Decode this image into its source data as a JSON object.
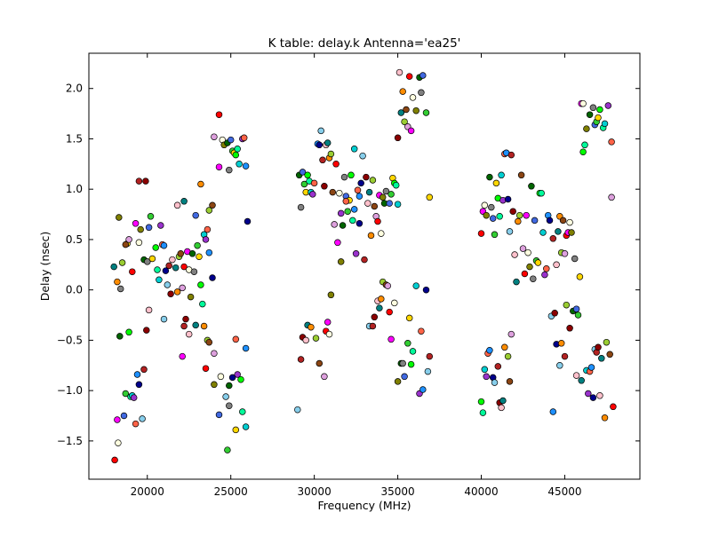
{
  "chart_data": {
    "type": "scatter",
    "title": "K table: delay.k       Antenna='ea25'",
    "xlabel": "Frequency (MHz)",
    "ylabel": "Delay (nsec)",
    "xlim": [
      16500,
      49500
    ],
    "ylim": [
      -1.88,
      2.35
    ],
    "xticks": [
      20000,
      25000,
      30000,
      35000,
      40000,
      45000
    ],
    "yticks": [
      -1.5,
      -1.0,
      -0.5,
      0.0,
      0.5,
      1.0,
      1.5,
      2.0
    ],
    "xtick_labels": [
      "20000",
      "25000",
      "30000",
      "35000",
      "40000",
      "45000"
    ],
    "ytick_labels": [
      "−1.5",
      "−1.0",
      "−0.5",
      "0.0",
      "0.5",
      "1.0",
      "1.5",
      "2.0"
    ],
    "grid": false,
    "legend": "none",
    "marker_palette": [
      "#ff8c00",
      "#1e90ff",
      "#32cd32",
      "#ff0000",
      "#8b0000",
      "#00ced1",
      "#006400",
      "#9acd32",
      "#00008b",
      "#ffd700",
      "#ff00ff",
      "#ffc0cb",
      "#9932cc",
      "#808080",
      "#8b4513",
      "#87ceeb",
      "#00ff00",
      "#ffffe0",
      "#008080",
      "#ff6347",
      "#4169e1",
      "#dda0dd",
      "#b22222",
      "#00fa9a",
      "#808000"
    ],
    "points": [
      [
        18050,
        -1.69
      ],
      [
        18200,
        -1.29
      ],
      [
        18250,
        -1.52
      ],
      [
        18300,
        0.72
      ],
      [
        18350,
        -0.46
      ],
      [
        18400,
        0.01
      ],
      [
        18600,
        -1.25
      ],
      [
        18700,
        -1.03
      ],
      [
        18800,
        0.46
      ],
      [
        18900,
        -0.42
      ],
      [
        19000,
        -1.06
      ],
      [
        19100,
        -1.05
      ],
      [
        19200,
        -1.07
      ],
      [
        19300,
        -1.33
      ],
      [
        19400,
        -0.84
      ],
      [
        19500,
        -0.94
      ],
      [
        19700,
        -1.28
      ],
      [
        19800,
        -0.79
      ],
      [
        19950,
        -0.4
      ],
      [
        20100,
        -0.2
      ],
      [
        18000,
        0.23
      ],
      [
        18200,
        0.08
      ],
      [
        18500,
        0.27
      ],
      [
        18700,
        0.45
      ],
      [
        18900,
        0.5
      ],
      [
        19100,
        0.18
      ],
      [
        19300,
        0.66
      ],
      [
        19500,
        0.47
      ],
      [
        19600,
        0.6
      ],
      [
        19800,
        0.3
      ],
      [
        20000,
        0.28
      ],
      [
        20100,
        0.62
      ],
      [
        20200,
        0.73
      ],
      [
        20300,
        0.31
      ],
      [
        20500,
        0.42
      ],
      [
        20600,
        0.2
      ],
      [
        20700,
        0.1
      ],
      [
        20800,
        0.64
      ],
      [
        20900,
        0.45
      ],
      [
        21000,
        0.44
      ],
      [
        21100,
        0.19
      ],
      [
        21200,
        0.05
      ],
      [
        21300,
        0.24
      ],
      [
        21400,
        -0.04
      ],
      [
        21500,
        0.3
      ],
      [
        21700,
        0.22
      ],
      [
        21800,
        -0.02
      ],
      [
        21900,
        0.33
      ],
      [
        22000,
        0.36
      ],
      [
        22100,
        0.02
      ],
      [
        22200,
        0.23
      ],
      [
        22400,
        0.38
      ],
      [
        22500,
        0.2
      ],
      [
        22600,
        -0.07
      ],
      [
        22700,
        0.36
      ],
      [
        22800,
        0.18
      ],
      [
        22900,
        0.74
      ],
      [
        23000,
        0.44
      ],
      [
        23100,
        0.33
      ],
      [
        23200,
        0.05
      ],
      [
        23300,
        -0.14
      ],
      [
        23400,
        0.55
      ],
      [
        23500,
        0.5
      ],
      [
        23600,
        0.6
      ],
      [
        23700,
        0.37
      ],
      [
        23900,
        0.12
      ],
      [
        21000,
        -0.29
      ],
      [
        22200,
        -0.36
      ],
      [
        22300,
        -0.29
      ],
      [
        22500,
        -0.44
      ],
      [
        22900,
        -0.35
      ],
      [
        23400,
        -0.36
      ],
      [
        23600,
        -0.5
      ],
      [
        23700,
        -0.52
      ],
      [
        24000,
        -0.63
      ],
      [
        23500,
        -0.78
      ],
      [
        22100,
        -0.66
      ],
      [
        24400,
        -0.86
      ],
      [
        24000,
        -0.94
      ],
      [
        24900,
        -0.95
      ],
      [
        24900,
        -1.15
      ],
      [
        24300,
        -1.24
      ],
      [
        24800,
        -1.59
      ],
      [
        25300,
        -1.39
      ],
      [
        25600,
        -0.89
      ],
      [
        25700,
        -1.21
      ],
      [
        25900,
        -1.36
      ],
      [
        25400,
        -0.84
      ],
      [
        25300,
        -0.49
      ],
      [
        25900,
        -0.58
      ],
      [
        25100,
        -0.87
      ],
      [
        24700,
        -1.06
      ],
      [
        19500,
        1.08
      ],
      [
        19900,
        1.08
      ],
      [
        21800,
        0.84
      ],
      [
        22200,
        0.88
      ],
      [
        23200,
        1.05
      ],
      [
        23700,
        0.79
      ],
      [
        23900,
        0.84
      ],
      [
        24000,
        1.52
      ],
      [
        24300,
        1.74
      ],
      [
        24300,
        1.22
      ],
      [
        24500,
        1.49
      ],
      [
        24600,
        1.44
      ],
      [
        24800,
        1.46
      ],
      [
        24900,
        1.19
      ],
      [
        25000,
        1.49
      ],
      [
        25100,
        1.38
      ],
      [
        25200,
        1.36
      ],
      [
        25300,
        1.34
      ],
      [
        25400,
        1.4
      ],
      [
        25500,
        1.25
      ],
      [
        25700,
        1.5
      ],
      [
        25800,
        1.51
      ],
      [
        25900,
        1.23
      ],
      [
        26000,
        0.68
      ],
      [
        29000,
        -1.19
      ],
      [
        29200,
        -0.69
      ],
      [
        29300,
        -0.47
      ],
      [
        29500,
        -0.5
      ],
      [
        29600,
        -0.35
      ],
      [
        29800,
        -0.37
      ],
      [
        30100,
        -0.48
      ],
      [
        30300,
        -0.73
      ],
      [
        30600,
        -0.86
      ],
      [
        30700,
        -0.41
      ],
      [
        30800,
        -0.32
      ],
      [
        30900,
        -0.44
      ],
      [
        31000,
        -0.05
      ],
      [
        29100,
        1.14
      ],
      [
        29200,
        0.82
      ],
      [
        29300,
        1.17
      ],
      [
        29400,
        1.05
      ],
      [
        29500,
        0.97
      ],
      [
        29600,
        1.14
      ],
      [
        29700,
        1.08
      ],
      [
        29800,
        0.97
      ],
      [
        29900,
        0.95
      ],
      [
        30000,
        1.06
      ],
      [
        30200,
        1.45
      ],
      [
        30300,
        1.44
      ],
      [
        30400,
        1.58
      ],
      [
        30500,
        1.29
      ],
      [
        30600,
        1.03
      ],
      [
        30700,
        1.44
      ],
      [
        30800,
        1.46
      ],
      [
        30900,
        1.31
      ],
      [
        31000,
        1.35
      ],
      [
        31100,
        0.97
      ],
      [
        31200,
        0.65
      ],
      [
        31300,
        1.25
      ],
      [
        31400,
        0.47
      ],
      [
        31500,
        0.96
      ],
      [
        31600,
        0.28
      ],
      [
        31700,
        0.64
      ],
      [
        31800,
        1.12
      ],
      [
        31900,
        0.93
      ],
      [
        32000,
        0.78
      ],
      [
        32100,
        0.89
      ],
      [
        32200,
        1.14
      ],
      [
        32300,
        0.69
      ],
      [
        32400,
        1.4
      ],
      [
        32500,
        0.36
      ],
      [
        32600,
        0.99
      ],
      [
        32700,
        0.93
      ],
      [
        32800,
        1.06
      ],
      [
        32900,
        1.33
      ],
      [
        33000,
        0.3
      ],
      [
        33100,
        1.12
      ],
      [
        33200,
        0.86
      ],
      [
        33300,
        0.97
      ],
      [
        33400,
        0.54
      ],
      [
        33500,
        1.09
      ],
      [
        33600,
        0.83
      ],
      [
        33700,
        0.73
      ],
      [
        33800,
        0.68
      ],
      [
        33900,
        0.94
      ],
      [
        34000,
        0.56
      ],
      [
        34100,
        0.92
      ],
      [
        34200,
        0.86
      ],
      [
        34300,
        0.98
      ],
      [
        34500,
        0.86
      ],
      [
        34600,
        0.95
      ],
      [
        34700,
        1.11
      ],
      [
        34800,
        1.06
      ],
      [
        34900,
        1.04
      ],
      [
        35000,
        0.85
      ],
      [
        31600,
        0.76
      ],
      [
        31900,
        0.88
      ],
      [
        32400,
        0.8
      ],
      [
        32700,
        0.66
      ],
      [
        33300,
        -0.36
      ],
      [
        33500,
        -0.36
      ],
      [
        33600,
        -0.27
      ],
      [
        33800,
        -0.11
      ],
      [
        33900,
        -0.18
      ],
      [
        34000,
        -0.09
      ],
      [
        34100,
        0.08
      ],
      [
        34300,
        0.05
      ],
      [
        34400,
        0.04
      ],
      [
        34500,
        -0.22
      ],
      [
        34600,
        -0.49
      ],
      [
        34800,
        -0.13
      ],
      [
        35000,
        -0.91
      ],
      [
        35200,
        -0.73
      ],
      [
        35300,
        -0.73
      ],
      [
        35400,
        -0.86
      ],
      [
        35600,
        -0.53
      ],
      [
        35700,
        -0.28
      ],
      [
        35800,
        -0.74
      ],
      [
        35900,
        -0.61
      ],
      [
        36100,
        0.04
      ],
      [
        36300,
        -1.03
      ],
      [
        36400,
        -0.41
      ],
      [
        36500,
        -0.99
      ],
      [
        36700,
        0.0
      ],
      [
        36800,
        -0.81
      ],
      [
        36900,
        -0.66
      ],
      [
        35000,
        1.51
      ],
      [
        35100,
        2.16
      ],
      [
        35200,
        1.76
      ],
      [
        35300,
        1.97
      ],
      [
        35400,
        1.67
      ],
      [
        35500,
        1.79
      ],
      [
        35600,
        1.62
      ],
      [
        35700,
        2.12
      ],
      [
        35800,
        1.58
      ],
      [
        35900,
        1.91
      ],
      [
        36100,
        1.78
      ],
      [
        36300,
        2.11
      ],
      [
        36400,
        1.96
      ],
      [
        36500,
        2.13
      ],
      [
        36700,
        1.76
      ],
      [
        36900,
        0.92
      ],
      [
        40000,
        -1.11
      ],
      [
        40100,
        -1.22
      ],
      [
        40200,
        -0.79
      ],
      [
        40300,
        -0.86
      ],
      [
        40400,
        -0.63
      ],
      [
        40500,
        -0.6
      ],
      [
        40700,
        -0.87
      ],
      [
        40800,
        -0.92
      ],
      [
        41000,
        -0.76
      ],
      [
        41100,
        -1.12
      ],
      [
        41200,
        -1.17
      ],
      [
        41300,
        -1.1
      ],
      [
        41400,
        -0.57
      ],
      [
        41600,
        -0.66
      ],
      [
        41700,
        -0.91
      ],
      [
        41800,
        -0.44
      ],
      [
        40000,
        0.56
      ],
      [
        40100,
        0.78
      ],
      [
        40200,
        0.84
      ],
      [
        40300,
        0.74
      ],
      [
        40500,
        1.12
      ],
      [
        40600,
        0.82
      ],
      [
        40700,
        0.71
      ],
      [
        40800,
        0.55
      ],
      [
        40900,
        1.06
      ],
      [
        41000,
        0.91
      ],
      [
        41100,
        0.73
      ],
      [
        41200,
        1.14
      ],
      [
        41300,
        0.89
      ],
      [
        41400,
        1.35
      ],
      [
        41500,
        1.36
      ],
      [
        41600,
        0.9
      ],
      [
        41700,
        0.58
      ],
      [
        41800,
        1.34
      ],
      [
        41900,
        0.78
      ],
      [
        42000,
        0.35
      ],
      [
        42100,
        0.08
      ],
      [
        42200,
        0.68
      ],
      [
        42300,
        0.74
      ],
      [
        42400,
        1.14
      ],
      [
        42500,
        0.41
      ],
      [
        42600,
        0.16
      ],
      [
        42700,
        0.74
      ],
      [
        42800,
        0.37
      ],
      [
        42900,
        0.23
      ],
      [
        43000,
        1.03
      ],
      [
        43100,
        0.11
      ],
      [
        43200,
        0.69
      ],
      [
        43300,
        0.29
      ],
      [
        43400,
        0.27
      ],
      [
        43500,
        0.96
      ],
      [
        43600,
        0.96
      ],
      [
        43700,
        0.57
      ],
      [
        43800,
        0.15
      ],
      [
        43900,
        0.21
      ],
      [
        44000,
        0.74
      ],
      [
        44100,
        0.69
      ],
      [
        44200,
        -0.26
      ],
      [
        44300,
        0.51
      ],
      [
        44400,
        -0.23
      ],
      [
        44500,
        0.25
      ],
      [
        44600,
        0.58
      ],
      [
        44700,
        0.73
      ],
      [
        44800,
        0.37
      ],
      [
        44900,
        0.69
      ],
      [
        45000,
        0.36
      ],
      [
        45100,
        0.54
      ],
      [
        45200,
        0.57
      ],
      [
        45300,
        0.67
      ],
      [
        45400,
        0.57
      ],
      [
        45500,
        -0.21
      ],
      [
        45600,
        0.31
      ],
      [
        45700,
        -0.19
      ],
      [
        45800,
        -0.25
      ],
      [
        45900,
        0.13
      ],
      [
        46100,
        1.37
      ],
      [
        46200,
        1.44
      ],
      [
        46300,
        -0.8
      ],
      [
        46400,
        -1.03
      ],
      [
        46500,
        -0.81
      ],
      [
        46600,
        -0.77
      ],
      [
        46700,
        -1.07
      ],
      [
        46800,
        -0.59
      ],
      [
        46900,
        -0.62
      ],
      [
        47000,
        -0.57
      ],
      [
        47100,
        -1.05
      ],
      [
        47200,
        -0.68
      ],
      [
        47400,
        -1.27
      ],
      [
        47500,
        -0.52
      ],
      [
        47700,
        -0.64
      ],
      [
        47800,
        0.92
      ],
      [
        47900,
        -1.16
      ],
      [
        46000,
        1.85
      ],
      [
        46100,
        1.85
      ],
      [
        46300,
        1.6
      ],
      [
        46500,
        1.74
      ],
      [
        46700,
        1.81
      ],
      [
        46800,
        1.64
      ],
      [
        46900,
        1.67
      ],
      [
        47000,
        1.71
      ],
      [
        47100,
        1.79
      ],
      [
        47300,
        1.61
      ],
      [
        47400,
        1.65
      ],
      [
        47600,
        1.83
      ],
      [
        47800,
        1.47
      ],
      [
        44300,
        -1.21
      ],
      [
        44500,
        -0.54
      ],
      [
        44700,
        -0.75
      ],
      [
        45000,
        -0.66
      ],
      [
        45300,
        -0.38
      ],
      [
        45700,
        -0.85
      ],
      [
        46000,
        -0.9
      ],
      [
        44800,
        -0.53
      ],
      [
        45100,
        -0.15
      ]
    ]
  }
}
